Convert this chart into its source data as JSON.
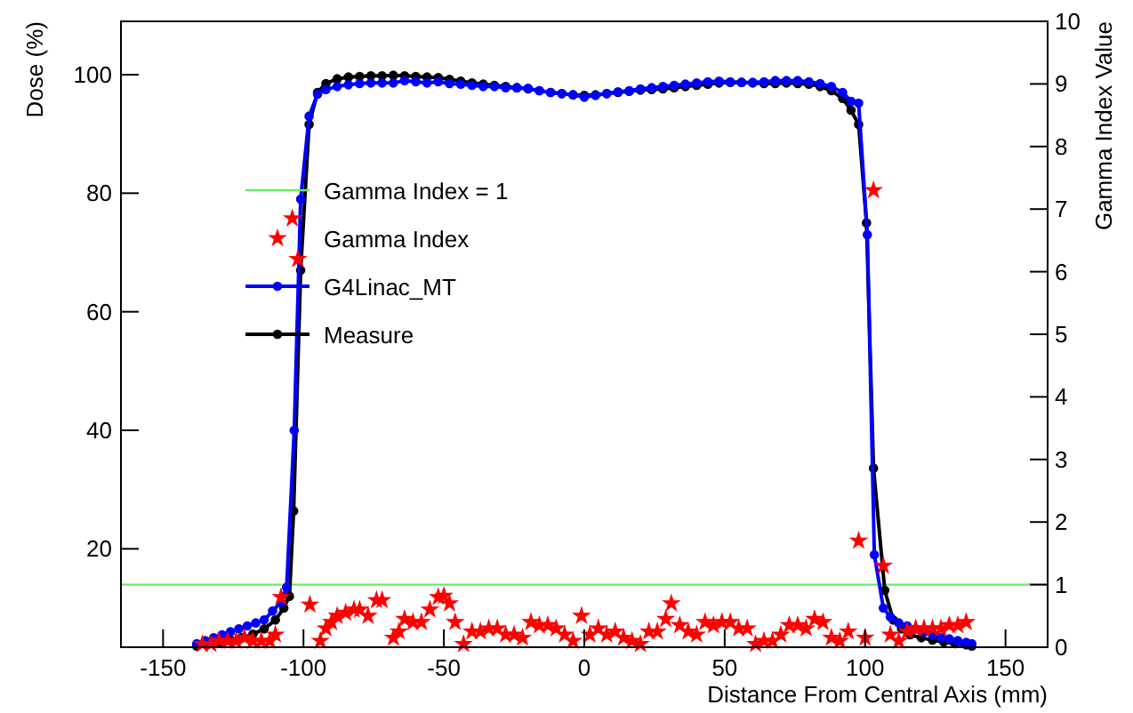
{
  "chart_data": {
    "type": "line",
    "xlabel": "Distance From Central Axis (mm)",
    "ylabel": "Dose (%)",
    "y2label": "Gamma Index Value",
    "xlim": [
      -165,
      165
    ],
    "xticks": [
      -150,
      -100,
      -50,
      0,
      50,
      100,
      150
    ],
    "ylim": [
      3.4,
      109
    ],
    "yticks": [
      20,
      40,
      60,
      80,
      100
    ],
    "y2lim": [
      0,
      10
    ],
    "y2ticks": [
      0,
      1,
      2,
      3,
      4,
      5,
      6,
      7,
      8,
      9,
      10
    ],
    "grid": false,
    "legend": "left",
    "ref_lines": [
      {
        "axis": "y2",
        "value": 1,
        "label": "Gamma Index = 1",
        "color": "#66ee66"
      }
    ],
    "series": [
      {
        "name": "Gamma Index",
        "type": "scatter",
        "axis": "y2",
        "color": "#ff0000",
        "marker": "star",
        "x": [
          -136,
          -133,
          -130,
          -127,
          -124,
          -121,
          -118,
          -115,
          -112,
          -110,
          -108,
          -104,
          -102,
          -97.7,
          -94,
          -92,
          -90,
          -88,
          -85,
          -82,
          -80,
          -77,
          -74,
          -72,
          -68,
          -66,
          -64,
          -61,
          -58,
          -55,
          -52,
          -50,
          -48,
          -46,
          -43,
          -40,
          -37,
          -34,
          -31,
          -28,
          -25,
          -22,
          -19,
          -16,
          -13,
          -10,
          -7,
          -4,
          -1,
          2,
          5,
          8,
          11,
          14,
          17,
          20,
          23,
          26,
          29,
          31,
          34,
          37,
          40,
          43,
          46,
          49,
          52,
          55,
          58,
          61,
          64,
          67,
          70,
          73,
          76,
          79,
          82,
          85,
          88,
          91,
          94,
          97.7,
          100,
          103,
          106.5,
          109,
          112,
          115,
          118,
          121,
          124,
          127,
          130,
          133,
          136
        ],
        "values": [
          0.05,
          0.05,
          0.1,
          0.1,
          0.1,
          0.15,
          0.1,
          0.1,
          0.1,
          0.2,
          0.8,
          6.85,
          6.2,
          0.68,
          0.1,
          0.3,
          0.4,
          0.5,
          0.55,
          0.6,
          0.6,
          0.5,
          0.75,
          0.75,
          0.15,
          0.25,
          0.45,
          0.4,
          0.4,
          0.6,
          0.8,
          0.82,
          0.7,
          0.4,
          0.05,
          0.25,
          0.25,
          0.3,
          0.3,
          0.2,
          0.2,
          0.15,
          0.4,
          0.35,
          0.35,
          0.3,
          0.2,
          0.1,
          0.5,
          0.2,
          0.3,
          0.2,
          0.25,
          0.15,
          0.1,
          0.05,
          0.25,
          0.25,
          0.45,
          0.7,
          0.35,
          0.25,
          0.2,
          0.4,
          0.35,
          0.4,
          0.4,
          0.3,
          0.3,
          0.05,
          0.1,
          0.1,
          0.2,
          0.35,
          0.35,
          0.3,
          0.45,
          0.4,
          0.15,
          0.1,
          0.25,
          1.7,
          0.15,
          7.3,
          1.3,
          0.2,
          0.1,
          0.25,
          0.3,
          0.3,
          0.3,
          0.3,
          0.35,
          0.35,
          0.4
        ]
      },
      {
        "name": "G4Linac_MT",
        "color": "#0000ff",
        "marker": "circle",
        "x": [
          -138,
          -135,
          -132,
          -129,
          -126,
          -123,
          -120,
          -117,
          -114,
          -111,
          -108,
          -106,
          -103.3,
          -101,
          -98,
          -95,
          -92,
          -88,
          -84,
          -80,
          -76,
          -72,
          -68,
          -64,
          -60,
          -56,
          -52,
          -48,
          -44,
          -40,
          -36,
          -32,
          -28,
          -24,
          -20,
          -16,
          -12,
          -8,
          -4,
          0,
          4,
          8,
          12,
          16,
          20,
          24,
          28,
          32,
          36,
          40,
          44,
          48,
          52,
          56,
          60,
          64,
          68,
          72,
          76,
          80,
          84,
          88,
          92,
          95,
          97.7,
          100.8,
          103.3,
          106.5,
          109,
          112,
          115,
          118,
          121,
          124,
          127,
          130,
          133,
          136,
          138
        ],
        "values": [
          4,
          4.5,
          5,
          5.5,
          6,
          6.5,
          7,
          7.5,
          8,
          9.5,
          11,
          13.5,
          40,
          79,
          93,
          96.7,
          97.5,
          98,
          98.3,
          98.5,
          98.6,
          98.6,
          98.6,
          99,
          98.8,
          98.6,
          98.8,
          98.5,
          98.4,
          98.2,
          98,
          98,
          97.8,
          97.8,
          97.7,
          97.3,
          97,
          96.8,
          96.6,
          96.2,
          96.5,
          96.8,
          97.1,
          97.3,
          97.6,
          97.8,
          98,
          98.2,
          98.4,
          98.6,
          98.8,
          98.9,
          98.8,
          98.7,
          98.7,
          98.8,
          99,
          99,
          99,
          98.8,
          98.5,
          98,
          97,
          95.5,
          95.2,
          73,
          19,
          10,
          8.5,
          7.5,
          7,
          6.5,
          6,
          5.5,
          5,
          4.8,
          4.5,
          4.2,
          4
        ]
      },
      {
        "name": "Measure",
        "color": "#000000",
        "marker": "circle",
        "x": [
          -138,
          -134,
          -130,
          -126,
          -122,
          -118,
          -114,
          -110,
          -107,
          -105,
          -103.5,
          -101,
          -98,
          -95,
          -92,
          -88,
          -84,
          -80,
          -76,
          -72,
          -68,
          -64,
          -60,
          -56,
          -52,
          -48,
          -44,
          -40,
          -36,
          -32,
          -28,
          -24,
          -20,
          -16,
          -12,
          -8,
          -4,
          0,
          4,
          8,
          12,
          16,
          20,
          24,
          28,
          32,
          36,
          40,
          44,
          48,
          52,
          56,
          60,
          64,
          68,
          72,
          76,
          80,
          84,
          88,
          92,
          95,
          97.7,
          100.5,
          103,
          107,
          110,
          113,
          116,
          120,
          124,
          128,
          132,
          136,
          138
        ],
        "values": [
          3.6,
          3.9,
          4.2,
          4.6,
          5,
          5.6,
          6.5,
          8,
          10,
          12,
          26.4,
          67,
          91.6,
          97,
          98.5,
          99.3,
          99.6,
          99.7,
          99.8,
          99.8,
          99.9,
          99.8,
          99.7,
          99.6,
          99.5,
          99.2,
          98.9,
          98.6,
          98.4,
          98.2,
          98,
          97.8,
          97.6,
          97.3,
          97,
          96.8,
          96.6,
          96.5,
          96.6,
          96.8,
          97,
          97.2,
          97.4,
          97.5,
          97.6,
          97.8,
          98,
          98.2,
          98.4,
          98.6,
          98.7,
          98.7,
          98.6,
          98.5,
          98.5,
          98.6,
          98.5,
          98.4,
          98,
          97.3,
          96,
          94,
          91.6,
          75,
          33.6,
          13,
          8,
          6.5,
          5.5,
          5,
          4.6,
          4.3,
          4,
          3.8,
          3.6
        ]
      }
    ]
  }
}
